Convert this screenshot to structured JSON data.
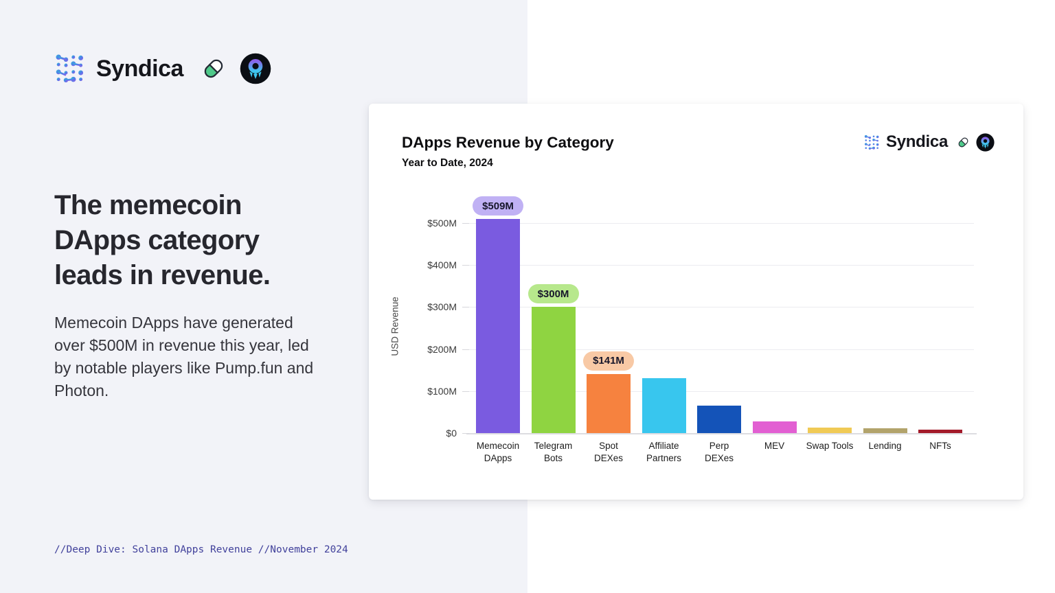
{
  "page": {
    "left_bg": "#f2f3f8",
    "right_bg": "#ffffff"
  },
  "header": {
    "brand": "Syndica",
    "icons": {
      "logo": "syndica-dots-logo",
      "pill": "pill-emoji",
      "photon": "photon-rocket-badge"
    }
  },
  "left_panel": {
    "headline": "The memecoin DApps category leads in revenue.",
    "body": "Memecoin DApps have generated over $500M in revenue this year, led by notable players like Pump.fun and Photon.",
    "footer": "//Deep Dive: Solana DApps Revenue //November 2024"
  },
  "card": {
    "title": "DApps Revenue by Category",
    "subtitle": "Year to Date, 2024",
    "brand": "Syndica"
  },
  "chart_data": {
    "type": "bar",
    "title": "DApps Revenue by Category",
    "subtitle": "Year to Date, 2024",
    "xlabel": "",
    "ylabel": "USD Revenue",
    "ylim": [
      0,
      560
    ],
    "grid": true,
    "legend": false,
    "yticks": [
      "$0",
      "$100M",
      "$200M",
      "$300M",
      "$400M",
      "$500M"
    ],
    "ytick_values": [
      0,
      100,
      200,
      300,
      400,
      500
    ],
    "categories": [
      "Memecoin\nDApps",
      "Telegram\nBots",
      "Spot\nDEXes",
      "Affiliate\nPartners",
      "Perp\nDEXes",
      "MEV",
      "Swap Tools",
      "Lending",
      "NFTs"
    ],
    "values": [
      509,
      300,
      141,
      130,
      65,
      28,
      13,
      11,
      8
    ],
    "colors": [
      "#7a5be0",
      "#8fd441",
      "#f6823f",
      "#38c6ee",
      "#1453b8",
      "#e25fd2",
      "#f0ca55",
      "#b2a36b",
      "#a31a2a"
    ],
    "bar_labels": [
      {
        "index": 0,
        "text": "$509M",
        "bg": "#c0b1f4"
      },
      {
        "index": 1,
        "text": "$300M",
        "bg": "#b7e88c"
      },
      {
        "index": 2,
        "text": "$141M",
        "bg": "#f8c9a5"
      }
    ]
  }
}
